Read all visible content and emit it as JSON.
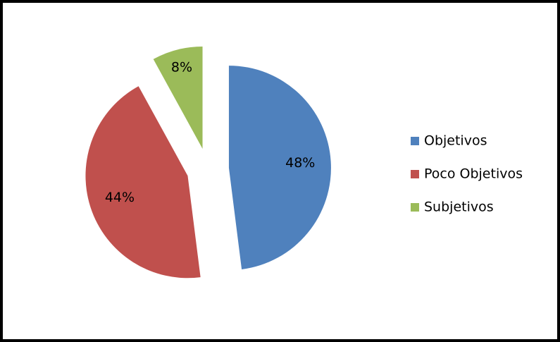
{
  "chart_data": {
    "type": "pie",
    "categories": [
      "Objetivos",
      "Poco Objetivos",
      "Subjetivos"
    ],
    "values": [
      48,
      44,
      8
    ],
    "value_labels": [
      "48%",
      "44%",
      "8%"
    ],
    "colors": [
      "#4f81bd",
      "#c0504d",
      "#9bbb59"
    ],
    "legend": "right"
  }
}
